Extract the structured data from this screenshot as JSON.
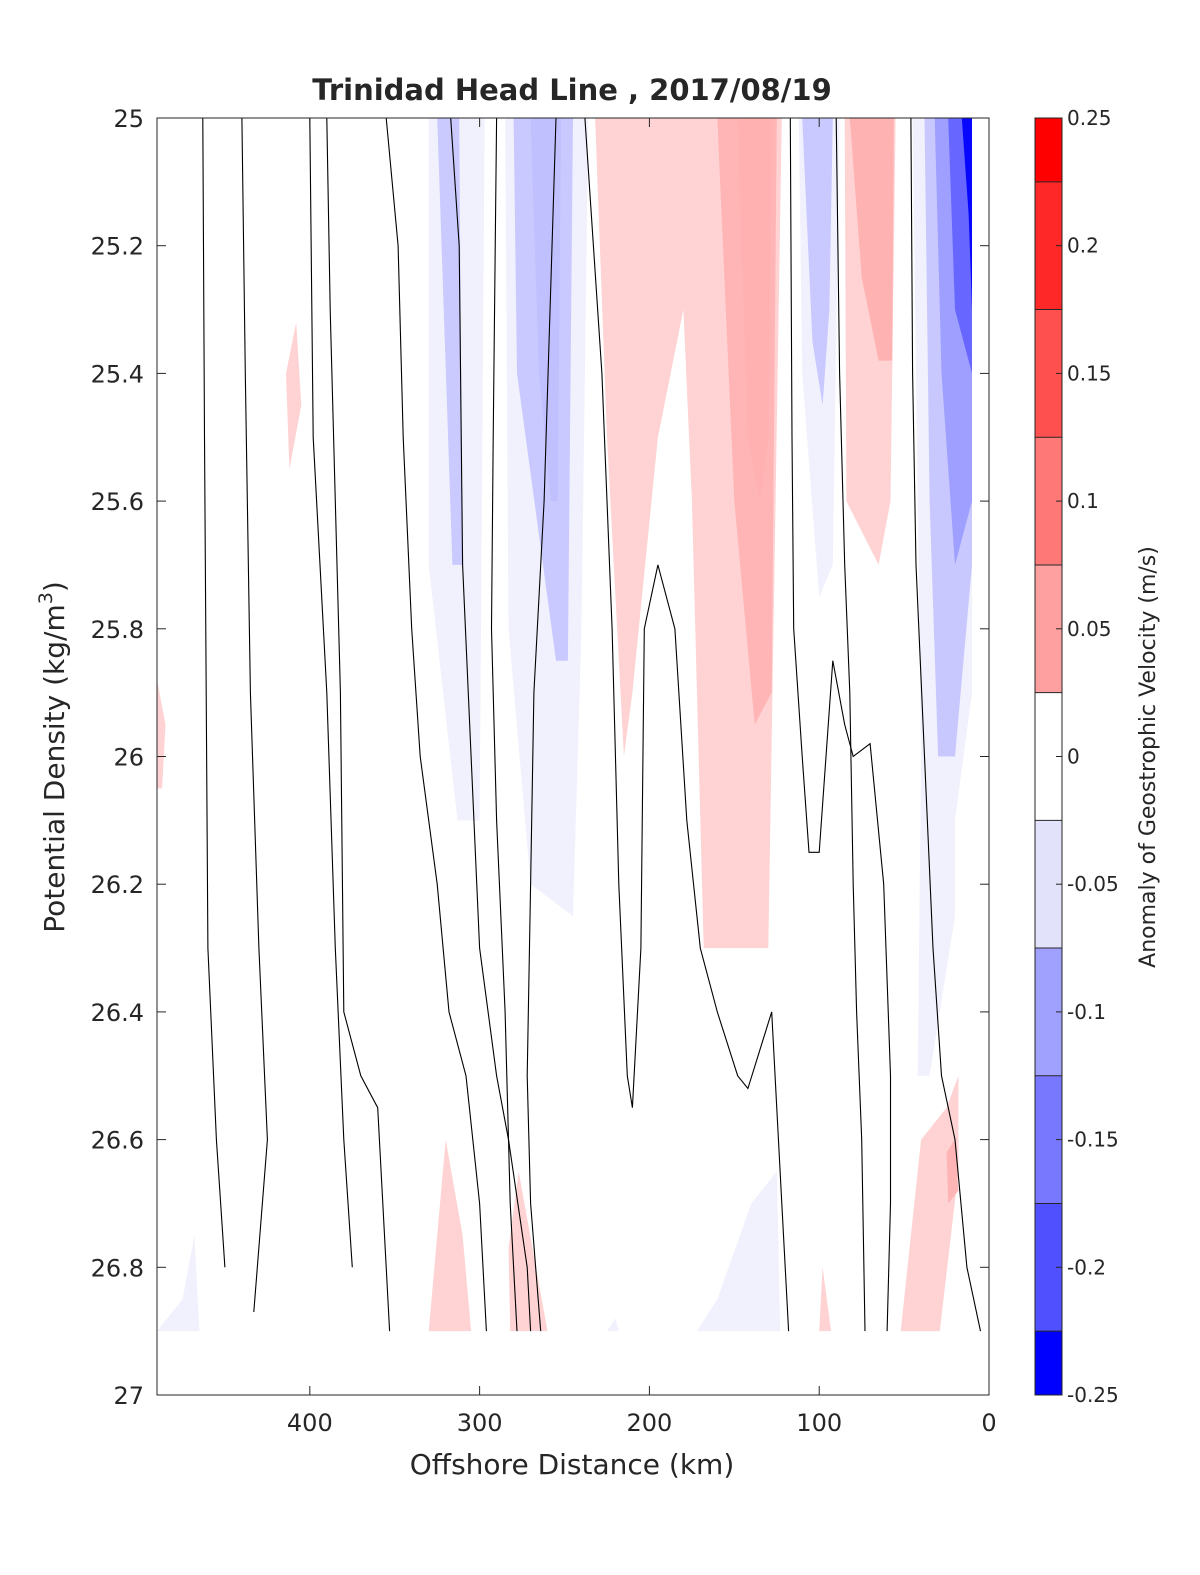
{
  "chart_data": {
    "type": "contourf",
    "title": "Trinidad Head Line , 2017/08/19",
    "xlabel": "Offshore Distance (km)",
    "ylabel_main": "Potential Density (kg/m",
    "ylabel_sup": "3",
    "ylabel_close": ")",
    "xlim": [
      490,
      0
    ],
    "ylim": [
      25,
      27
    ],
    "x_reversed": true,
    "y_reversed": true,
    "xticks": [
      400,
      300,
      200,
      100,
      0
    ],
    "yticks": [
      25,
      25.2,
      25.4,
      25.6,
      25.8,
      26,
      26.2,
      26.4,
      26.6,
      26.8,
      27
    ],
    "ytick_labels": [
      "25",
      "25.2",
      "25.4",
      "25.6",
      "25.8",
      "26",
      "26.2",
      "26.4",
      "26.6",
      "26.8",
      "27"
    ],
    "colorbar": {
      "label": "Anomaly of Geostrophic Velocity (m/s)",
      "limits": [
        -0.25,
        0.25
      ],
      "ticks": [
        0.25,
        0.2,
        0.15,
        0.1,
        0.05,
        0,
        -0.05,
        -0.1,
        -0.15,
        -0.2,
        -0.25
      ],
      "tick_labels": [
        "0.25",
        "0.2",
        "0.15",
        "0.1",
        "0.05",
        "0",
        "-0.05",
        "-0.1",
        "-0.15",
        "-0.2",
        "-0.25"
      ],
      "levels": [
        {
          "from": 0.225,
          "to": 0.25,
          "color": "#ff0000"
        },
        {
          "from": 0.175,
          "to": 0.225,
          "color": "#ff2828"
        },
        {
          "from": 0.125,
          "to": 0.175,
          "color": "#ff5050"
        },
        {
          "from": 0.075,
          "to": 0.125,
          "color": "#ff7878"
        },
        {
          "from": 0.025,
          "to": 0.075,
          "color": "#ffa0a0"
        },
        {
          "from": -0.025,
          "to": 0.025,
          "color": "#ffffff"
        },
        {
          "from": -0.075,
          "to": -0.025,
          "color": "#e2e2fb"
        },
        {
          "from": -0.125,
          "to": -0.075,
          "color": "#a0a0ff"
        },
        {
          "from": -0.175,
          "to": -0.125,
          "color": "#7878ff"
        },
        {
          "from": -0.225,
          "to": -0.175,
          "color": "#5050ff"
        },
        {
          "from": -0.25,
          "to": -0.225,
          "color": "#0000ff"
        }
      ]
    },
    "filled_regions": [
      {
        "value": -0.045,
        "points": [
          [
            330,
            25
          ],
          [
            330,
            25.7
          ],
          [
            313,
            26.1
          ],
          [
            300,
            26.1
          ],
          [
            297,
            25
          ],
          [
            330,
            25
          ]
        ]
      },
      {
        "value": -0.08,
        "points": [
          [
            325,
            25
          ],
          [
            312,
            25
          ],
          [
            310,
            25.7
          ],
          [
            316,
            25.7
          ],
          [
            325,
            25
          ]
        ]
      },
      {
        "value": -0.045,
        "points": [
          [
            285,
            25
          ],
          [
            283,
            25.8
          ],
          [
            270,
            26.2
          ],
          [
            245,
            26.25
          ],
          [
            240,
            25.8
          ],
          [
            236,
            25
          ],
          [
            285,
            25
          ]
        ]
      },
      {
        "value": -0.085,
        "points": [
          [
            280,
            25
          ],
          [
            278,
            25.4
          ],
          [
            255,
            25.85
          ],
          [
            248,
            25.85
          ],
          [
            245,
            25
          ],
          [
            280,
            25
          ]
        ]
      },
      {
        "value": -0.12,
        "points": [
          [
            270,
            25
          ],
          [
            265,
            25.4
          ],
          [
            258,
            25.6
          ],
          [
            254,
            25.6
          ],
          [
            252,
            25
          ],
          [
            270,
            25
          ]
        ]
      },
      {
        "value": 0.045,
        "points": [
          [
            232,
            25
          ],
          [
            225,
            25.5
          ],
          [
            215,
            26.0
          ],
          [
            210,
            25.9
          ],
          [
            195,
            25.5
          ],
          [
            180,
            25.3
          ],
          [
            175,
            25.6
          ],
          [
            168,
            26.3
          ],
          [
            130,
            26.3
          ],
          [
            122,
            25
          ],
          [
            232,
            25
          ]
        ]
      },
      {
        "value": 0.075,
        "points": [
          [
            160,
            25
          ],
          [
            150,
            25.6
          ],
          [
            138,
            25.95
          ],
          [
            128,
            25.9
          ],
          [
            125,
            25
          ],
          [
            160,
            25
          ]
        ]
      },
      {
        "value": 0.09,
        "points": [
          [
            148,
            25
          ],
          [
            142,
            25.5
          ],
          [
            135,
            25.6
          ],
          [
            130,
            25.5
          ],
          [
            128,
            25
          ],
          [
            148,
            25
          ]
        ]
      },
      {
        "value": -0.045,
        "points": [
          [
            112,
            25
          ],
          [
            110,
            25.4
          ],
          [
            100,
            25.75
          ],
          [
            92,
            25.7
          ],
          [
            88,
            25
          ],
          [
            112,
            25
          ]
        ]
      },
      {
        "value": -0.085,
        "points": [
          [
            110,
            25
          ],
          [
            104,
            25.35
          ],
          [
            98,
            25.45
          ],
          [
            94,
            25.3
          ],
          [
            92,
            25
          ],
          [
            110,
            25
          ]
        ]
      },
      {
        "value": 0.045,
        "points": [
          [
            85,
            25
          ],
          [
            84,
            25.6
          ],
          [
            65,
            25.7
          ],
          [
            58,
            25.6
          ],
          [
            55,
            25
          ],
          [
            85,
            25
          ]
        ]
      },
      {
        "value": 0.085,
        "points": [
          [
            82,
            25
          ],
          [
            75,
            25.25
          ],
          [
            65,
            25.38
          ],
          [
            57,
            25.38
          ],
          [
            56,
            25
          ],
          [
            82,
            25
          ]
        ]
      },
      {
        "value": -0.045,
        "points": [
          [
            45,
            25
          ],
          [
            40,
            26.0
          ],
          [
            42,
            26.5
          ],
          [
            35,
            26.5
          ],
          [
            20,
            26.25
          ],
          [
            20,
            26.1
          ],
          [
            10,
            25.9
          ],
          [
            10,
            25
          ],
          [
            45,
            25
          ]
        ]
      },
      {
        "value": -0.09,
        "points": [
          [
            38,
            25
          ],
          [
            35,
            25.6
          ],
          [
            30,
            26.0
          ],
          [
            20,
            26.0
          ],
          [
            10,
            25.7
          ],
          [
            10,
            25
          ],
          [
            38,
            25
          ]
        ]
      },
      {
        "value": -0.14,
        "points": [
          [
            32,
            25
          ],
          [
            28,
            25.4
          ],
          [
            20,
            25.7
          ],
          [
            10,
            25.6
          ],
          [
            10,
            25
          ],
          [
            32,
            25
          ]
        ]
      },
      {
        "value": -0.2,
        "points": [
          [
            24,
            25
          ],
          [
            20,
            25.3
          ],
          [
            10,
            25.4
          ],
          [
            10,
            25
          ],
          [
            24,
            25
          ]
        ]
      },
      {
        "value": -0.24,
        "points": [
          [
            16,
            25
          ],
          [
            12,
            25.15
          ],
          [
            10,
            25.3
          ],
          [
            10,
            25
          ],
          [
            16,
            25
          ]
        ]
      },
      {
        "value": 0.045,
        "points": [
          [
            408,
            25.32
          ],
          [
            405,
            25.45
          ],
          [
            412,
            25.55
          ],
          [
            414,
            25.4
          ],
          [
            408,
            25.32
          ]
        ]
      },
      {
        "value": 0.045,
        "points": [
          [
            490,
            25.88
          ],
          [
            485,
            25.95
          ],
          [
            487,
            26.05
          ],
          [
            490,
            26.05
          ],
          [
            490,
            25.88
          ]
        ]
      },
      {
        "value": 0.045,
        "points": [
          [
            330,
            26.9
          ],
          [
            320,
            26.6
          ],
          [
            310,
            26.75
          ],
          [
            305,
            26.9
          ],
          [
            330,
            26.9
          ]
        ]
      },
      {
        "value": 0.045,
        "points": [
          [
            282,
            26.9
          ],
          [
            283,
            26.77
          ],
          [
            277,
            26.65
          ],
          [
            260,
            26.9
          ],
          [
            282,
            26.9
          ]
        ]
      },
      {
        "value": -0.045,
        "points": [
          [
            172,
            26.9
          ],
          [
            160,
            26.85
          ],
          [
            140,
            26.7
          ],
          [
            125,
            26.65
          ],
          [
            123,
            26.9
          ],
          [
            172,
            26.9
          ]
        ]
      },
      {
        "value": -0.045,
        "points": [
          [
            225,
            26.9
          ],
          [
            220,
            26.88
          ],
          [
            218,
            26.9
          ],
          [
            225,
            26.9
          ]
        ]
      },
      {
        "value": 0.045,
        "points": [
          [
            100,
            26.9
          ],
          [
            98,
            26.8
          ],
          [
            93,
            26.9
          ],
          [
            100,
            26.9
          ]
        ]
      },
      {
        "value": 0.045,
        "points": [
          [
            52,
            26.9
          ],
          [
            40,
            26.6
          ],
          [
            25,
            26.55
          ],
          [
            18,
            26.5
          ],
          [
            18,
            26.65
          ],
          [
            29,
            26.9
          ],
          [
            52,
            26.9
          ]
        ]
      },
      {
        "value": 0.075,
        "points": [
          [
            25,
            26.62
          ],
          [
            20,
            26.6
          ],
          [
            18,
            26.68
          ],
          [
            24,
            26.7
          ],
          [
            25,
            26.62
          ]
        ]
      },
      {
        "value": -0.045,
        "points": [
          [
            490,
            26.9
          ],
          [
            475,
            26.85
          ],
          [
            468,
            26.75
          ],
          [
            465,
            26.9
          ],
          [
            490,
            26.9
          ]
        ]
      }
    ],
    "contour_lines": [
      [
        [
          463,
          25
        ],
        [
          462,
          25.5
        ],
        [
          460,
          26.3
        ],
        [
          455,
          26.6
        ],
        [
          450,
          26.8
        ]
      ],
      [
        [
          440,
          25
        ],
        [
          438,
          25.4
        ],
        [
          435,
          25.9
        ],
        [
          430,
          26.3
        ],
        [
          425,
          26.6
        ],
        [
          433,
          26.87
        ]
      ],
      [
        [
          400,
          25
        ],
        [
          398,
          25.5
        ],
        [
          390,
          25.9
        ],
        [
          385,
          26.3
        ],
        [
          380,
          26.6
        ],
        [
          375,
          26.8
        ]
      ],
      [
        [
          390,
          25
        ],
        [
          388,
          25.3
        ],
        [
          382,
          25.9
        ],
        [
          380,
          26.4
        ],
        [
          370,
          26.5
        ],
        [
          360,
          26.55
        ],
        [
          353,
          26.9
        ]
      ],
      [
        [
          355,
          25
        ],
        [
          348,
          25.2
        ],
        [
          345,
          25.5
        ],
        [
          340,
          25.8
        ],
        [
          335,
          26.0
        ],
        [
          325,
          26.2
        ],
        [
          318,
          26.4
        ],
        [
          308,
          26.5
        ],
        [
          300,
          26.7
        ],
        [
          296,
          26.9
        ]
      ],
      [
        [
          317,
          25
        ],
        [
          312,
          25.2
        ],
        [
          310,
          25.7
        ],
        [
          305,
          26.0
        ],
        [
          300,
          26.3
        ],
        [
          290,
          26.5
        ],
        [
          283,
          26.6
        ],
        [
          272,
          26.8
        ],
        [
          270,
          26.9
        ]
      ],
      [
        [
          290,
          25
        ],
        [
          292,
          25.5
        ],
        [
          293,
          25.8
        ],
        [
          290,
          26.1
        ],
        [
          285,
          26.4
        ],
        [
          282,
          26.7
        ],
        [
          278,
          26.9
        ]
      ],
      [
        [
          255,
          25
        ],
        [
          262,
          25.6
        ],
        [
          268,
          25.9
        ],
        [
          270,
          26.2
        ],
        [
          272,
          26.5
        ],
        [
          270,
          26.7
        ],
        [
          264,
          26.9
        ]
      ],
      [
        [
          238,
          25
        ],
        [
          228,
          25.4
        ],
        [
          222,
          25.8
        ],
        [
          218,
          26.2
        ],
        [
          213,
          26.5
        ],
        [
          210,
          26.55
        ],
        [
          205,
          26.3
        ],
        [
          203,
          25.8
        ],
        [
          195,
          25.7
        ],
        [
          185,
          25.8
        ],
        [
          178,
          26.1
        ],
        [
          170,
          26.3
        ],
        [
          160,
          26.4
        ],
        [
          148,
          26.5
        ],
        [
          142,
          26.52
        ],
        [
          128,
          26.4
        ],
        [
          122,
          26.7
        ],
        [
          118,
          26.9
        ]
      ],
      [
        [
          117,
          25
        ],
        [
          116,
          25.5
        ],
        [
          115,
          25.8
        ],
        [
          110,
          26.0
        ],
        [
          106,
          26.15
        ],
        [
          100,
          26.15
        ],
        [
          92,
          25.85
        ],
        [
          85,
          25.95
        ],
        [
          80,
          26.0
        ],
        [
          70,
          25.98
        ],
        [
          62,
          26.2
        ],
        [
          58,
          26.5
        ],
        [
          58,
          26.7
        ],
        [
          60,
          26.9
        ]
      ],
      [
        [
          90,
          25
        ],
        [
          88,
          25.4
        ],
        [
          85,
          25.7
        ],
        [
          82,
          25.9
        ],
        [
          80,
          26.2
        ],
        [
          78,
          26.4
        ],
        [
          75,
          26.6
        ],
        [
          73,
          26.9
        ]
      ],
      [
        [
          46,
          25
        ],
        [
          45,
          25.4
        ],
        [
          43,
          25.7
        ],
        [
          38,
          26.0
        ],
        [
          33,
          26.3
        ],
        [
          28,
          26.5
        ],
        [
          20,
          26.6
        ],
        [
          13,
          26.8
        ],
        [
          5,
          26.9
        ]
      ]
    ]
  }
}
